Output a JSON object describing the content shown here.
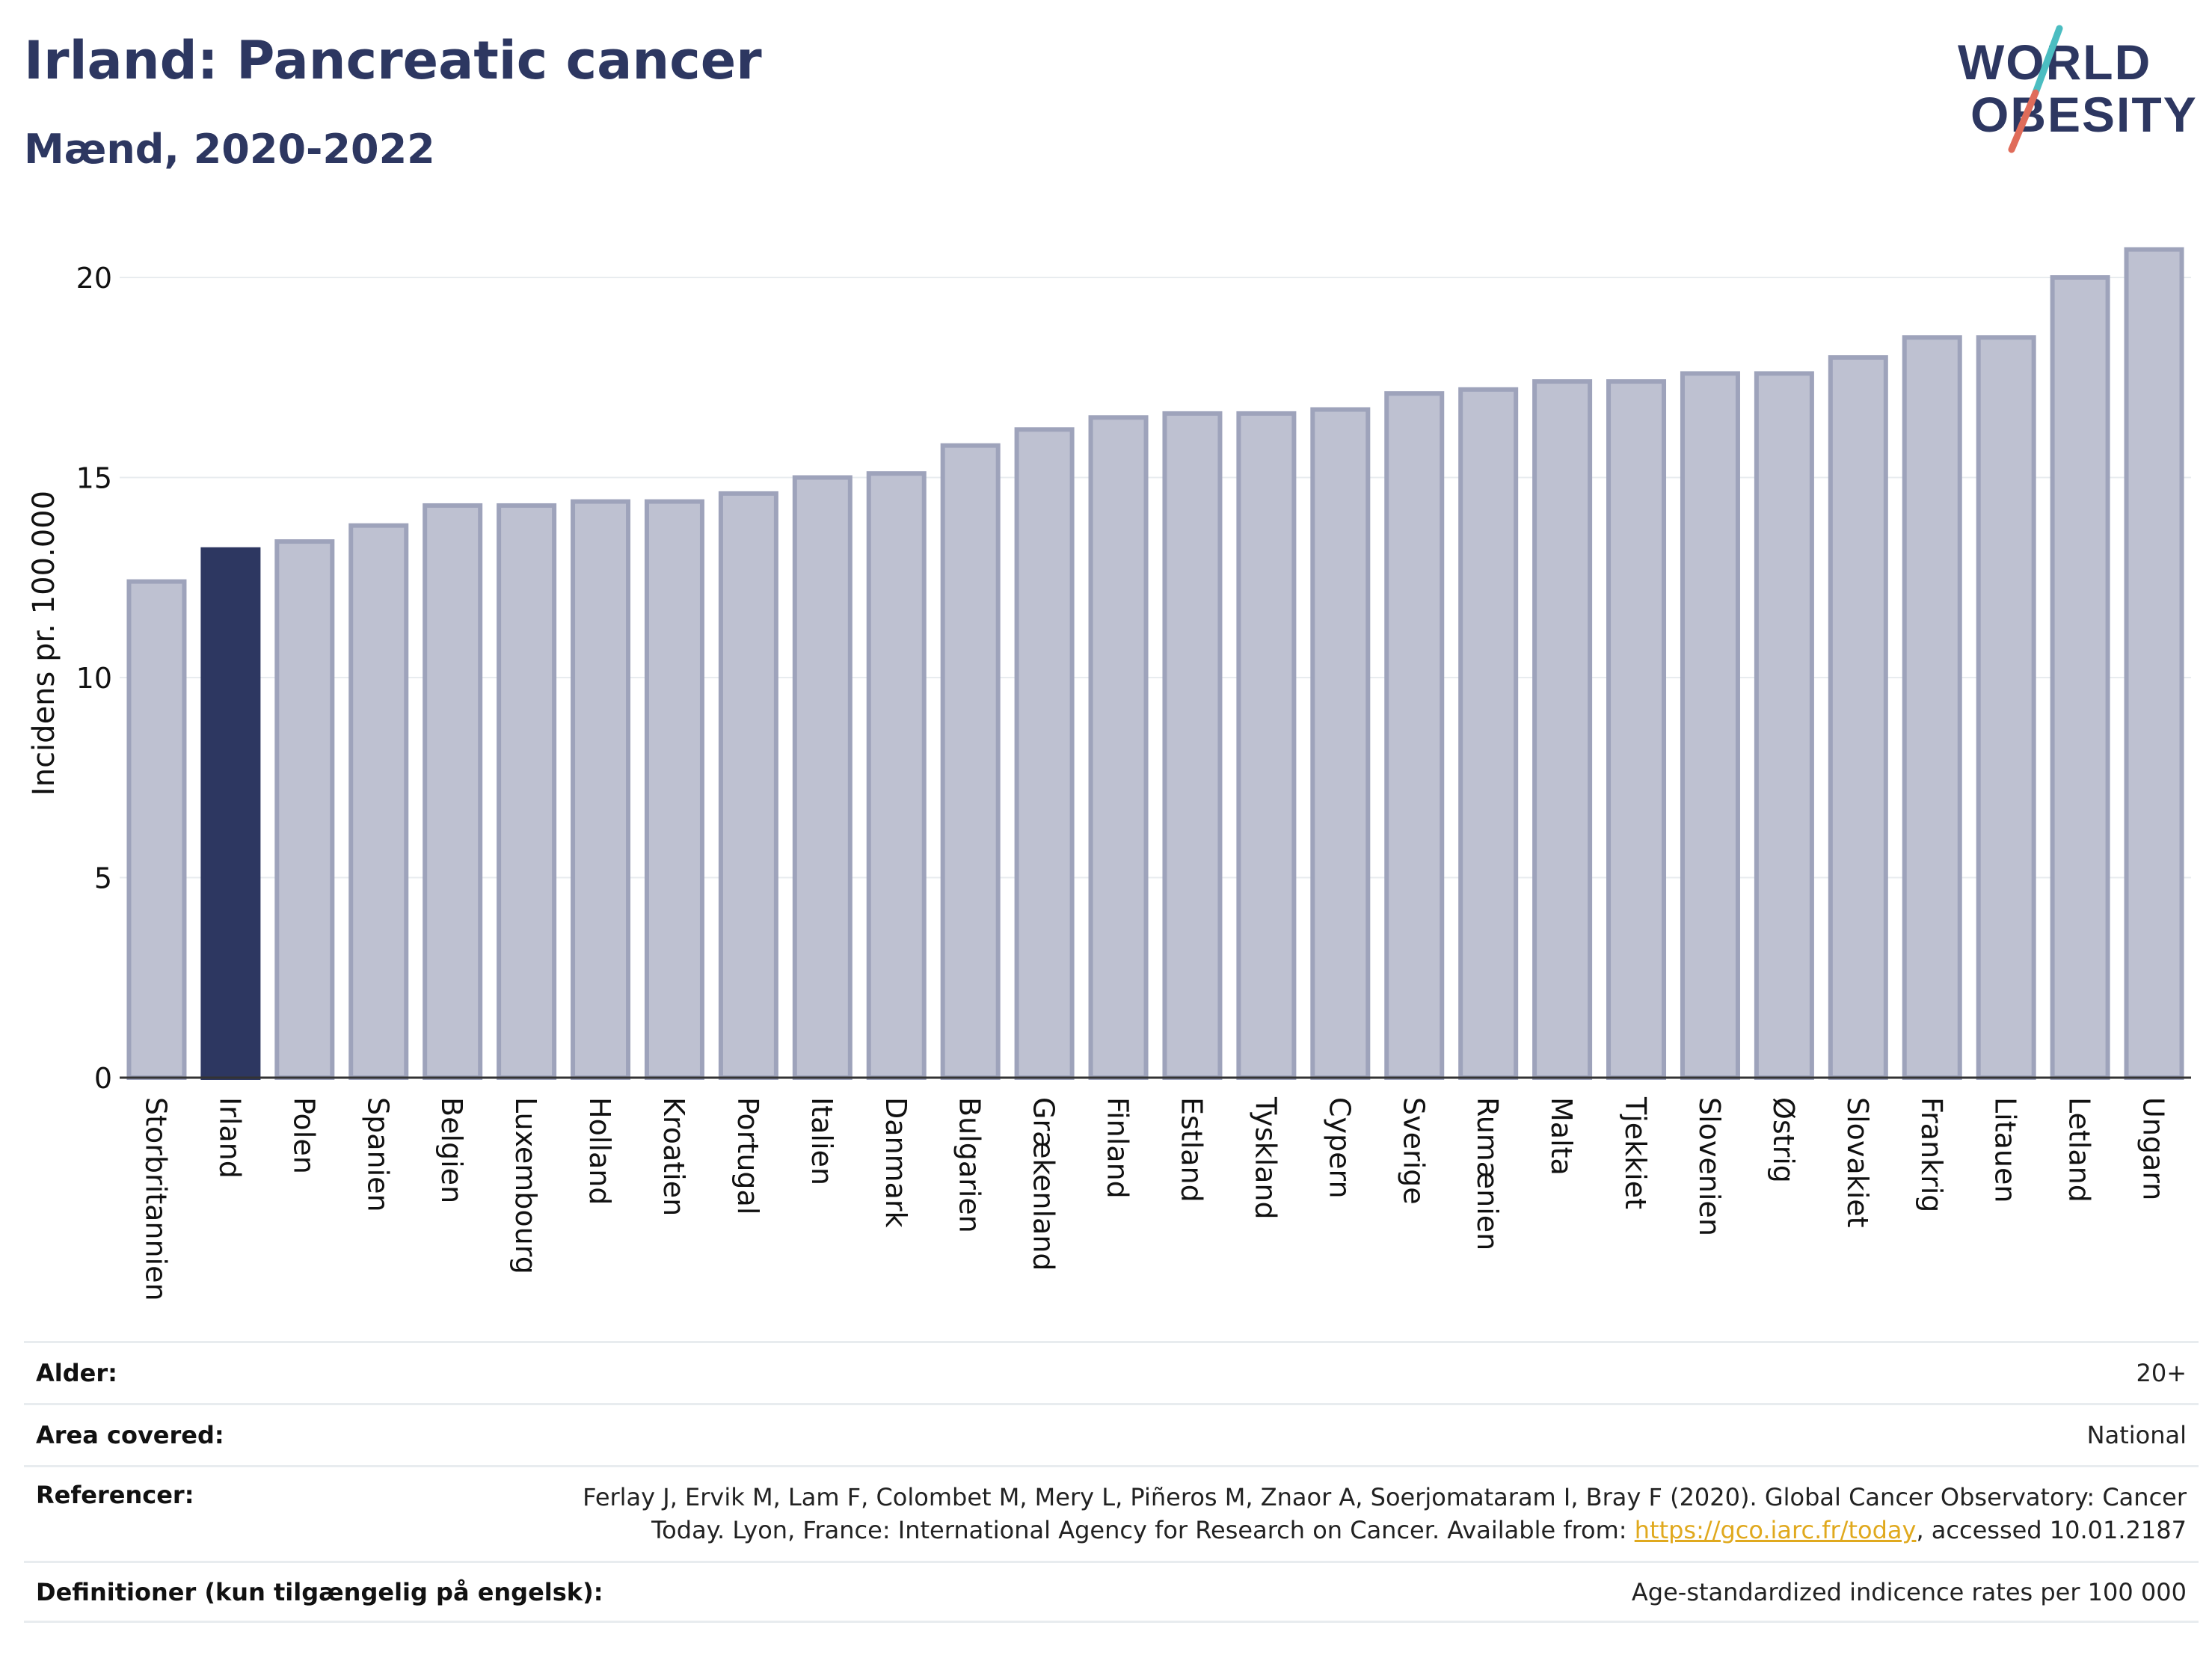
{
  "header": {
    "title": "Irland: Pancreatic cancer",
    "subtitle": "Mænd, 2020-2022"
  },
  "logo": {
    "line1": "WORLD",
    "line2": "OBESITY"
  },
  "colors": {
    "highlight": "#2d3761",
    "bar": "#bec1d1",
    "bar_border": "#9ea3bb",
    "grid": "#e8ecef",
    "logo_text": "#2d3761",
    "logo_teal": "#4bbdc1",
    "logo_coral": "#e06c5a"
  },
  "chart_data": {
    "type": "bar",
    "title": "Irland: Pancreatic cancer",
    "subtitle": "Mænd, 2020-2022",
    "ylabel": "Incidens pr. 100.000",
    "xlabel": "",
    "ylim": [
      0,
      21
    ],
    "yticks": [
      0,
      5,
      10,
      15,
      20
    ],
    "grid": true,
    "highlight_category": "Irland",
    "categories": [
      "Storbritannien",
      "Irland",
      "Polen",
      "Spanien",
      "Belgien",
      "Luxembourg",
      "Holland",
      "Kroatien",
      "Portugal",
      "Italien",
      "Danmark",
      "Bulgarien",
      "Grækenland",
      "Finland",
      "Estland",
      "Tyskland",
      "Cypern",
      "Sverige",
      "Rumænien",
      "Malta",
      "Tjekkiet",
      "Slovenien",
      "Østrig",
      "Slovakiet",
      "Frankrig",
      "Litauen",
      "Letland",
      "Ungarn"
    ],
    "values": [
      12.4,
      13.2,
      13.4,
      13.8,
      14.3,
      14.3,
      14.4,
      14.4,
      14.6,
      15.0,
      15.1,
      15.8,
      16.2,
      16.5,
      16.6,
      16.6,
      16.7,
      17.1,
      17.2,
      17.4,
      17.4,
      17.6,
      17.6,
      18.0,
      18.5,
      18.5,
      20.0,
      20.7
    ]
  },
  "info": {
    "rows": [
      {
        "label": "Alder:",
        "value": "20+"
      },
      {
        "label": "Area covered:",
        "value": "National"
      },
      {
        "label": "Referencer:",
        "value_line1": "Ferlay J, Ervik M, Lam F, Colombet M, Mery L, Piñeros M, Znaor A, Soerjomataram I, Bray F (2020). Global Cancer Observatory: Cancer",
        "value_line2_pre": "Today. Lyon, France: International Agency for Research on Cancer. Available from: ",
        "link": "https://gco.iarc.fr/today",
        "value_line2_post": ", accessed 10.01.2187"
      },
      {
        "label": "Definitioner (kun tilgængelig på engelsk):",
        "value": "Age-standardized indicence rates per 100 000"
      }
    ]
  }
}
